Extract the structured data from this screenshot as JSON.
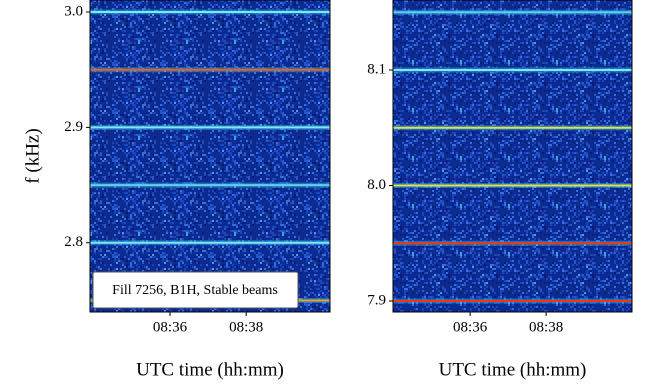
{
  "chart_data": [
    {
      "type": "spectrogram",
      "ylabel": "f (kHz)",
      "xlabel": "UTC time (hh:mm)",
      "annotation": "Fill 7256, B1H, Stable beams",
      "xlim": [
        513.9,
        520.2
      ],
      "xticks": [
        {
          "value": 516,
          "label": "08:36"
        },
        {
          "value": 518,
          "label": "08:38"
        }
      ],
      "ylim": [
        2.74,
        3.0104
      ],
      "yticks": [
        2.8,
        2.9,
        {
          "value": 3,
          "label": "3.0"
        }
      ],
      "values": [
        3.0,
        2.95,
        2.9,
        2.85,
        2.8,
        2.75
      ],
      "colors": [
        "#7fe8f0",
        "#ff5a1a",
        "#7fe8f0",
        "#5fd0e8",
        "#7fe8f0",
        "#f0a020"
      ]
    },
    {
      "type": "spectrogram",
      "xlabel": "UTC time (hh:mm)",
      "xlim": [
        513.97,
        520.26
      ],
      "xticks": [
        {
          "value": 516,
          "label": "08:36"
        },
        {
          "value": 518,
          "label": "08:38"
        }
      ],
      "ylim": [
        7.8905,
        8.1606
      ],
      "yticks": [
        7.9,
        {
          "value": 8,
          "label": "8.0"
        },
        8.1
      ],
      "values": [
        8.15,
        8.1,
        8.05,
        8.0,
        7.95,
        7.9
      ],
      "colors": [
        "#5fd0e8",
        "#7fe8f0",
        "#e8e040",
        "#e8e040",
        "#ff3010",
        "#ff3010"
      ]
    }
  ]
}
